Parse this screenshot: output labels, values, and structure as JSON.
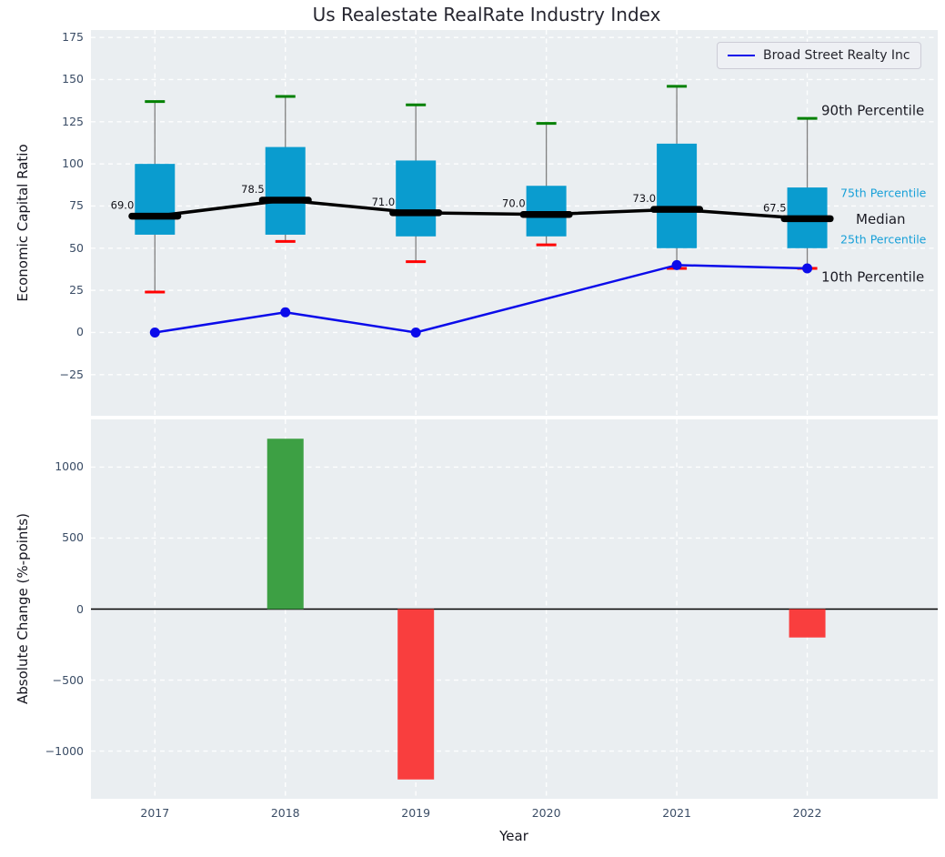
{
  "title": "Us Realestate RealRate Industry Index",
  "legend": {
    "label": "Broad Street Realty Inc"
  },
  "colors": {
    "axes_bg": "#eaeef1",
    "grid": "#ffffff",
    "box_fill": "#0a9ccf",
    "p90_cap": "#008000",
    "p10_cap": "#ff0000",
    "whisker": "#808080",
    "median_line": "#000000",
    "company_line": "#0b0bea",
    "bar_positive": "#3da044",
    "bar_negative": "#f93e3e",
    "tick_label": "#3b4d66",
    "dark_text": "#15151f",
    "cyan_text": "#18a0d8"
  },
  "chart_data": [
    {
      "type": "boxplot+line",
      "title": "Us Realestate RealRate Industry Index",
      "ylabel": "Economic Capital Ratio",
      "ylim": [
        -49.4,
        179.4
      ],
      "xlim": [
        2016.51,
        2023.0
      ],
      "grid": true,
      "yticks": [
        {
          "v": 175,
          "label": "175"
        },
        {
          "v": 150,
          "label": "150"
        },
        {
          "v": 125,
          "label": "125"
        },
        {
          "v": 100,
          "label": "100"
        },
        {
          "v": 75,
          "label": "75"
        },
        {
          "v": 50,
          "label": "50"
        },
        {
          "v": 25,
          "label": "25"
        },
        {
          "v": 0,
          "label": "0"
        },
        {
          "v": -25,
          "label": "−25"
        }
      ],
      "years": [
        2017,
        2018,
        2019,
        2020,
        2021,
        2022
      ],
      "boxes": [
        {
          "year": 2017,
          "p10": 24,
          "p25": 58,
          "median": 69.0,
          "p75": 100,
          "p90": 137,
          "median_label": "69.0"
        },
        {
          "year": 2018,
          "p10": 54,
          "p25": 58,
          "median": 78.5,
          "p75": 110,
          "p90": 140,
          "median_label": "78.5"
        },
        {
          "year": 2019,
          "p10": 42,
          "p25": 57,
          "median": 71.0,
          "p75": 102,
          "p90": 135,
          "median_label": "71.0"
        },
        {
          "year": 2020,
          "p10": 52,
          "p25": 57,
          "median": 70.0,
          "p75": 87,
          "p90": 124,
          "median_label": "70.0"
        },
        {
          "year": 2021,
          "p10": 38,
          "p25": 50,
          "median": 73.0,
          "p75": 112,
          "p90": 146,
          "median_label": "73.0"
        },
        {
          "year": 2022,
          "p10": 38,
          "p25": 50,
          "median": 67.5,
          "p75": 86,
          "p90": 127,
          "median_label": "67.5"
        }
      ],
      "series": [
        {
          "name": "Broad Street Realty Inc",
          "x": [
            2017,
            2018,
            2019,
            2020,
            2021,
            2022
          ],
          "values": [
            0,
            12,
            0,
            null,
            40,
            38
          ]
        }
      ],
      "annotations": [
        {
          "text": "90th Percentile",
          "style": "dark",
          "value": 127,
          "dy": -9
        },
        {
          "text": "75th Percentile",
          "style": "cyan",
          "value": 86,
          "dy": 6
        },
        {
          "text": "Median",
          "style": "dark",
          "value": 67.5,
          "dy": 0
        },
        {
          "text": "25th Percentile",
          "style": "cyan",
          "value": 50,
          "dy": -10
        },
        {
          "text": "10th Percentile",
          "style": "dark",
          "value": 38,
          "dy": 9
        }
      ],
      "legend": {
        "position": "upper right",
        "entries": [
          "Broad Street Realty Inc"
        ]
      }
    },
    {
      "type": "bar",
      "ylabel": "Absolute Change (%-points)",
      "xlabel": "Year",
      "ylim": [
        -1336,
        1336
      ],
      "grid": true,
      "yticks": [
        {
          "v": 1000,
          "label": "1000"
        },
        {
          "v": 500,
          "label": "500"
        },
        {
          "v": 0,
          "label": "0"
        },
        {
          "v": -500,
          "label": "−500"
        },
        {
          "v": -1000,
          "label": "−1000"
        }
      ],
      "categories": [
        "2017",
        "2018",
        "2019",
        "2020",
        "2021",
        "2022"
      ],
      "bars": [
        {
          "year": 2018,
          "value": 1200
        },
        {
          "year": 2019,
          "value": -1200
        },
        {
          "year": 2022,
          "value": -200
        }
      ]
    }
  ]
}
